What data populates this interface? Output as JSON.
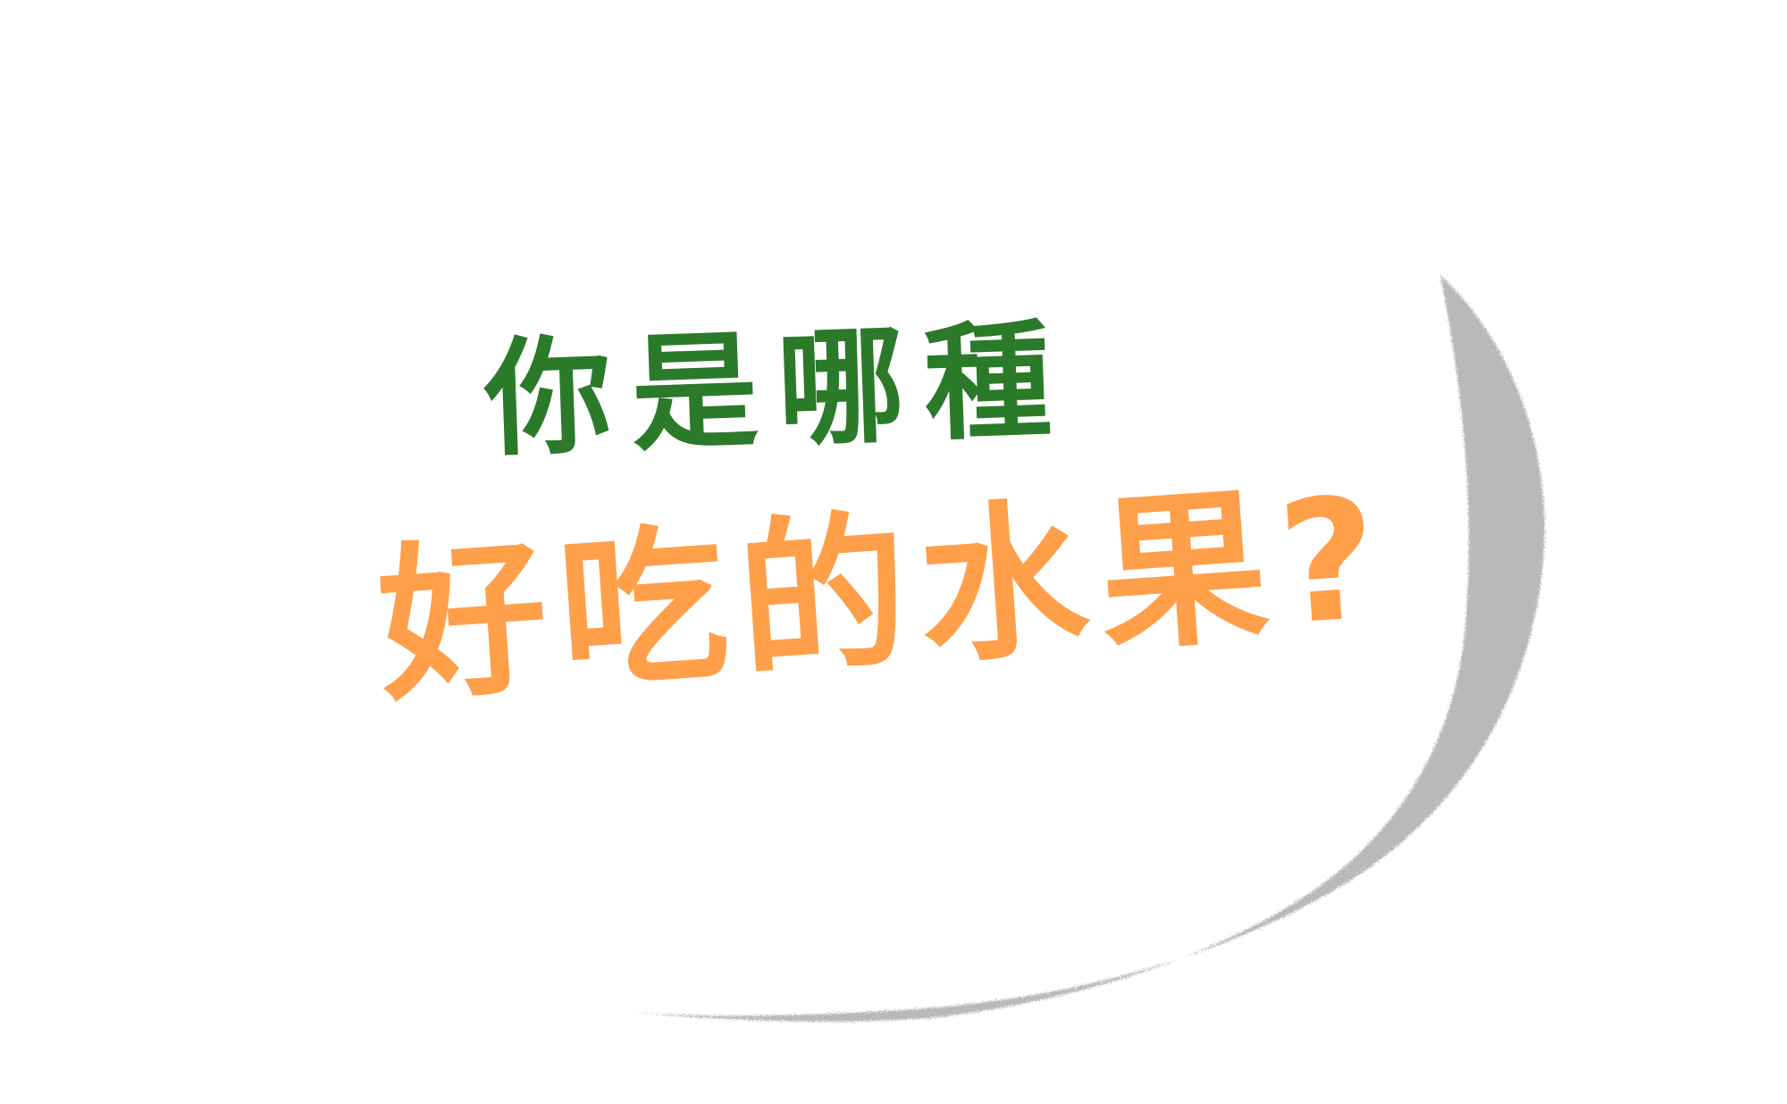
{
  "colors": {
    "background": "#ffffff",
    "line1": "#2a7a2a",
    "line2": "#ff9f4a",
    "shadow": "#b9b9b9"
  },
  "title": {
    "line1": "你是哪種",
    "line2": "好吃的水果?"
  }
}
